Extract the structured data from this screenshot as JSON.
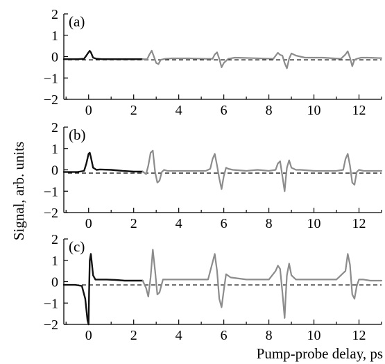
{
  "chart_data": {
    "type": "line",
    "ylabel": "Signal, arb. units",
    "xlabel": "Pump-probe delay, ps",
    "xlim": [
      -1.1,
      13.0
    ],
    "ylim": [
      -2,
      2
    ],
    "x_ticks": [
      0,
      2,
      4,
      6,
      8,
      10,
      12
    ],
    "y_ticks": [
      -2,
      -1,
      0,
      1,
      2
    ],
    "baseline_dashed": -0.15,
    "grid": false,
    "colors": {
      "primary": "#111111",
      "echo": "#8c8c8c",
      "dashed": "#000000"
    },
    "panels": [
      {
        "label": "(a)",
        "series": [
          {
            "x": [
              -1.1,
              -0.5,
              -0.2,
              -0.1,
              0.0,
              0.05,
              0.1,
              0.2,
              0.35,
              0.6,
              1.0,
              1.5,
              2.0,
              2.4
            ],
            "y": [
              -0.12,
              -0.12,
              -0.1,
              0.05,
              0.2,
              0.27,
              0.2,
              -0.05,
              -0.1,
              -0.12,
              -0.12,
              -0.12,
              -0.12,
              -0.12
            ]
          },
          {
            "x": [
              2.4,
              2.6,
              2.7,
              2.8,
              2.9,
              3.0,
              3.1,
              3.2,
              3.4,
              3.7,
              4.5,
              5.2,
              5.5,
              5.6,
              5.7,
              5.8,
              5.9,
              6.0,
              6.2,
              6.5,
              7.3,
              8.2,
              8.4,
              8.5,
              8.6,
              8.7,
              8.8,
              8.9,
              9.0,
              9.2,
              9.6,
              10.4,
              11.2,
              11.4,
              11.5,
              11.6,
              11.7,
              11.8,
              11.9,
              12.1,
              12.4,
              13.0
            ],
            "y": [
              -0.12,
              -0.12,
              0.1,
              0.28,
              0.0,
              -0.3,
              -0.35,
              -0.15,
              -0.1,
              -0.08,
              -0.08,
              -0.1,
              -0.1,
              0.1,
              0.2,
              -0.1,
              -0.5,
              -0.3,
              -0.1,
              -0.05,
              -0.07,
              -0.1,
              0.18,
              0.08,
              0.05,
              -0.3,
              -0.55,
              -0.1,
              0.15,
              0.05,
              -0.05,
              -0.05,
              -0.1,
              0.1,
              0.25,
              -0.05,
              -0.45,
              -0.15,
              -0.1,
              -0.05,
              -0.05,
              -0.07
            ]
          }
        ]
      },
      {
        "label": "(b)",
        "series": [
          {
            "x": [
              -1.1,
              -0.5,
              -0.2,
              -0.1,
              0.0,
              0.05,
              0.1,
              0.2,
              0.35,
              0.5,
              1.0,
              1.5,
              2.0,
              2.4
            ],
            "y": [
              -0.1,
              -0.1,
              -0.05,
              0.3,
              0.75,
              0.8,
              0.6,
              0.1,
              0.0,
              0.02,
              0.0,
              -0.05,
              -0.08,
              -0.08
            ]
          },
          {
            "x": [
              2.4,
              2.55,
              2.65,
              2.75,
              2.85,
              2.95,
              3.05,
              3.15,
              3.25,
              3.35,
              3.5,
              3.8,
              4.5,
              5.2,
              5.4,
              5.5,
              5.6,
              5.7,
              5.8,
              5.9,
              6.0,
              6.1,
              6.2,
              6.4,
              7.0,
              7.5,
              8.0,
              8.3,
              8.4,
              8.5,
              8.6,
              8.7,
              8.75,
              8.8,
              8.9,
              9.0,
              9.2,
              9.4,
              10.0,
              11.0,
              11.3,
              11.4,
              11.5,
              11.6,
              11.7,
              11.8,
              11.9,
              12.0,
              12.2,
              12.5,
              13.0
            ],
            "y": [
              -0.08,
              -0.2,
              0.2,
              0.8,
              0.9,
              -0.1,
              -0.6,
              -0.5,
              -0.1,
              0.0,
              -0.05,
              -0.05,
              -0.05,
              -0.05,
              0.05,
              0.5,
              0.75,
              0.2,
              -0.4,
              -0.9,
              -0.3,
              0.1,
              0.05,
              0.0,
              -0.05,
              0.0,
              -0.05,
              0.0,
              0.3,
              0.4,
              -0.3,
              -1.0,
              -0.4,
              0.1,
              0.45,
              0.1,
              0.0,
              0.0,
              -0.05,
              -0.05,
              0.0,
              0.5,
              0.75,
              0.2,
              -0.6,
              -0.7,
              -0.1,
              0.0,
              -0.05,
              -0.05,
              -0.05
            ]
          }
        ]
      },
      {
        "label": "(c)",
        "series": [
          {
            "x": [
              -1.1,
              -0.6,
              -0.3,
              -0.15,
              -0.05,
              0.0,
              0.02,
              0.05,
              0.1,
              0.15,
              0.2,
              0.3,
              0.5,
              0.8,
              1.2,
              1.6,
              2.0,
              2.4
            ],
            "y": [
              -0.15,
              -0.15,
              -0.2,
              -0.8,
              -1.8,
              -2.0,
              -0.5,
              1.0,
              1.3,
              0.8,
              0.3,
              0.1,
              0.1,
              0.1,
              0.08,
              0.05,
              0.05,
              0.05
            ]
          },
          {
            "x": [
              2.4,
              2.55,
              2.65,
              2.75,
              2.85,
              2.95,
              3.05,
              3.15,
              3.3,
              3.5,
              4.0,
              4.5,
              5.0,
              5.3,
              5.5,
              5.6,
              5.7,
              5.8,
              5.9,
              6.0,
              6.1,
              6.3,
              7.0,
              8.0,
              8.3,
              8.4,
              8.5,
              8.6,
              8.7,
              8.75,
              8.8,
              8.9,
              9.0,
              9.2,
              9.6,
              10.0,
              11.0,
              11.4,
              11.5,
              11.6,
              11.7,
              11.8,
              11.9,
              12.0,
              12.2,
              12.5,
              13.0
            ],
            "y": [
              0.05,
              -0.3,
              -0.7,
              0.2,
              1.5,
              0.5,
              -0.6,
              -0.5,
              0.1,
              0.1,
              0.1,
              0.1,
              0.1,
              0.1,
              0.9,
              1.3,
              0.5,
              -0.8,
              -1.2,
              -0.4,
              0.35,
              0.2,
              0.1,
              0.1,
              0.5,
              0.75,
              0.6,
              -0.5,
              -1.7,
              -0.6,
              0.3,
              0.85,
              0.3,
              0.1,
              0.1,
              0.1,
              0.1,
              0.5,
              1.3,
              0.8,
              -0.6,
              -0.8,
              -0.2,
              0.1,
              0.1,
              0.05,
              0.05
            ]
          }
        ]
      }
    ]
  }
}
